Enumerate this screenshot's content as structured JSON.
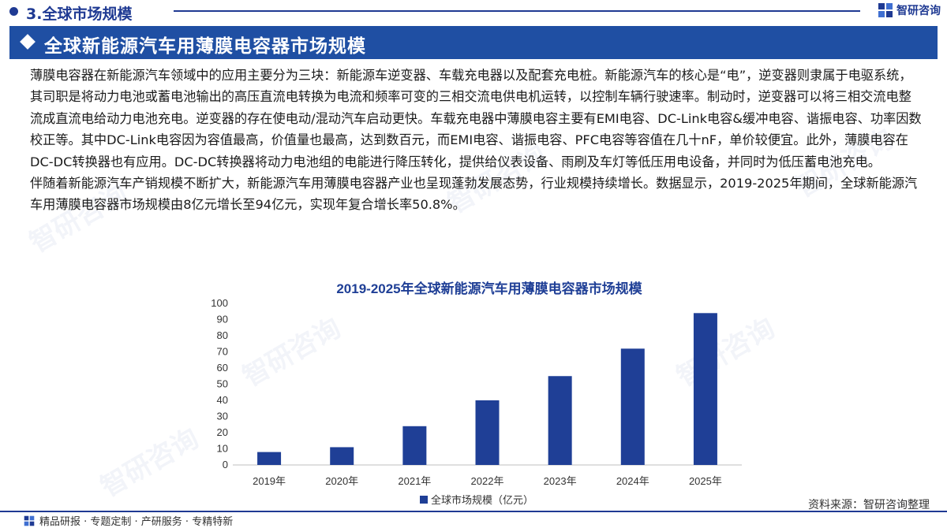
{
  "header": {
    "section_title": "3.全球市场规模",
    "brand": "智研咨询"
  },
  "banner": {
    "title": "全球新能源汽车用薄膜电容器市场规模"
  },
  "body": {
    "paragraph1": "薄膜电容器在新能源汽车领域中的应用主要分为三块：新能源车逆变器、车载充电器以及配套充电桩。新能源汽车的核心是“电”，逆变器则隶属于电驱系统，其司职是将动力电池或蓄电池输出的高压直流电转换为电流和频率可变的三相交流电供电机运转，以控制车辆行驶速率。制动时，逆变器可以将三相交流电整流成直流电给动力电池充电。逆变器的存在使电动/混动汽车启动更快。车载充电器中薄膜电容主要有EMI电容、DC-Link电容&缓冲电容、谐振电容、功率因数校正等。其中DC-Link电容因为容值最高，价值量也最高，达到数百元，而EMI电容、谐振电容、PFC电容等容值在几十nF，单价较便宜。此外，薄膜电容在DC-DC转换器也有应用。DC-DC转换器将动力电池组的电能进行降压转化，提供给仪表设备、雨刷及车灯等低压用电设备，并同时为低压蓄电池充电。",
    "paragraph2": "伴随着新能源汽车产销规模不断扩大，新能源汽车用薄膜电容器产业也呈现蓬勃发展态势，行业规模持续增长。数据显示，2019-2025年期间，全球新能源汽车用薄膜电容器市场规模由8亿元增长至94亿元，实现年复合增长率50.8%。"
  },
  "chart_data": {
    "type": "bar",
    "title": "2019-2025年全球新能源汽车用薄膜电容器市场规模",
    "categories": [
      "2019年",
      "2020年",
      "2021年",
      "2022年",
      "2023年",
      "2024年",
      "2025年"
    ],
    "series": [
      {
        "name": "全球市场规模（亿元）",
        "values": [
          8,
          11,
          24,
          40,
          55,
          72,
          94
        ]
      }
    ],
    "ylim": [
      0,
      100
    ],
    "yticks": [
      0,
      10,
      20,
      30,
      40,
      50,
      60,
      70,
      80,
      90,
      100
    ],
    "grid": false,
    "legend": "bottom",
    "color": "#1f3f96"
  },
  "footer": {
    "tagline": "精品研报 · 专题定制 · 产研服务 · 专精特新",
    "source": "资料来源：智研咨询整理"
  },
  "colors": {
    "brand_blue": "#1f3a93",
    "banner_blue": "#1f4fa3",
    "bar_blue": "#1f3f96"
  }
}
